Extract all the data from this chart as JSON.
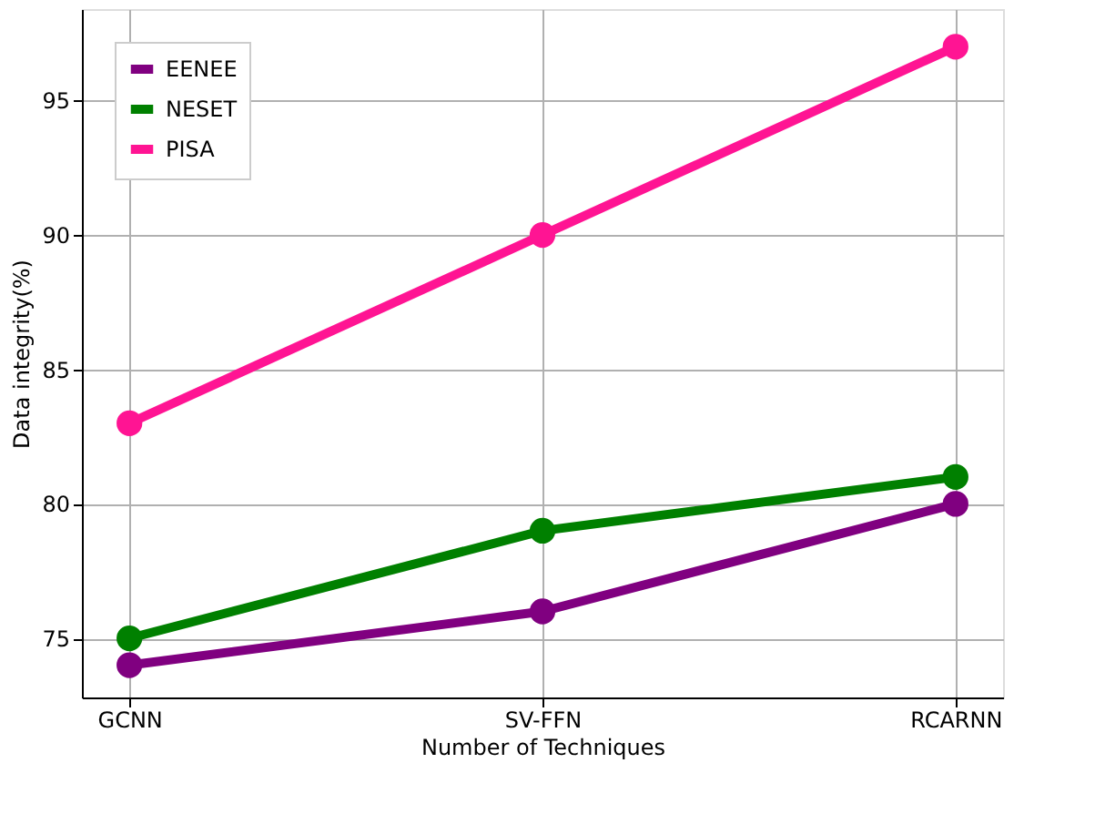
{
  "chart_data": {
    "type": "line",
    "xlabel": "Number of Techniques",
    "ylabel": "Data integrity(%)",
    "categories": [
      "GCNN",
      "SV-FFN",
      "RCARNN"
    ],
    "series": [
      {
        "name": "EENEE",
        "color": "#800080",
        "values": [
          74,
          76,
          80
        ]
      },
      {
        "name": "NESET",
        "color": "#008000",
        "values": [
          75,
          79,
          81
        ]
      },
      {
        "name": "PISA",
        "color": "#ff1493",
        "values": [
          83,
          90,
          97
        ]
      }
    ],
    "ylim": [
      72.8,
      98.4
    ],
    "yticks": [
      75,
      80,
      85,
      90,
      95
    ],
    "grid": true,
    "legend": "top left",
    "marker": "circle",
    "line_style": "solid"
  }
}
